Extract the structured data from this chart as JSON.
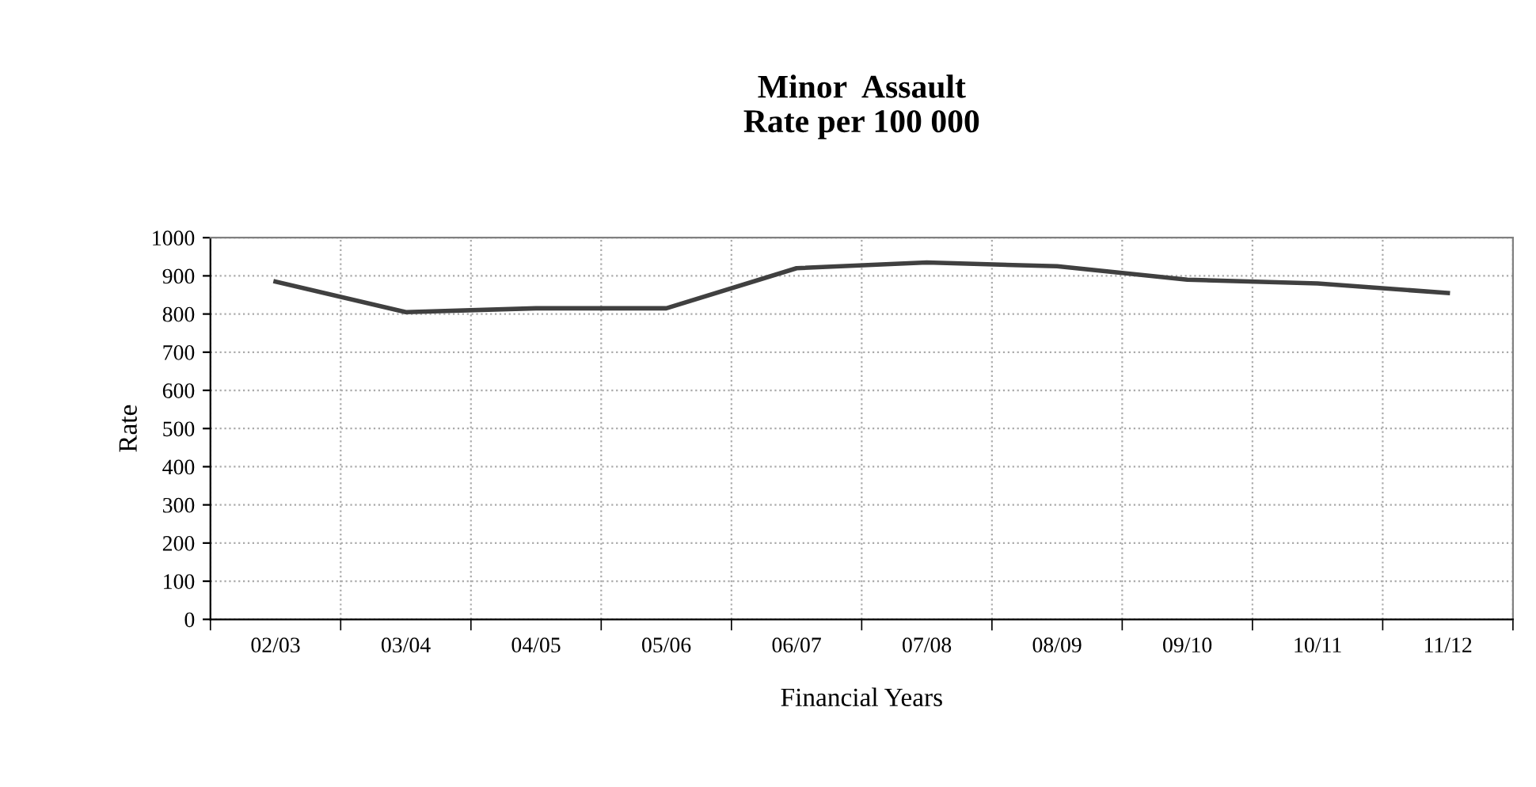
{
  "chart_data": {
    "type": "line",
    "title": "Minor  Assault\nRate per 100 000",
    "xlabel": "Financial Years",
    "ylabel": "Rate",
    "categories": [
      "02/03",
      "03/04",
      "04/05",
      "05/06",
      "06/07",
      "07/08",
      "08/09",
      "09/10",
      "10/11",
      "11/12"
    ],
    "series": [
      {
        "color": "#404040",
        "values": [
          885,
          805,
          815,
          815,
          920,
          935,
          925,
          890,
          880,
          855
        ]
      }
    ],
    "ylim": [
      0,
      1000
    ],
    "yticks": [
      0,
      100,
      200,
      300,
      400,
      500,
      600,
      700,
      800,
      900,
      1000
    ],
    "grid": true,
    "legend": false,
    "marker": "none",
    "line_style": "solid"
  }
}
